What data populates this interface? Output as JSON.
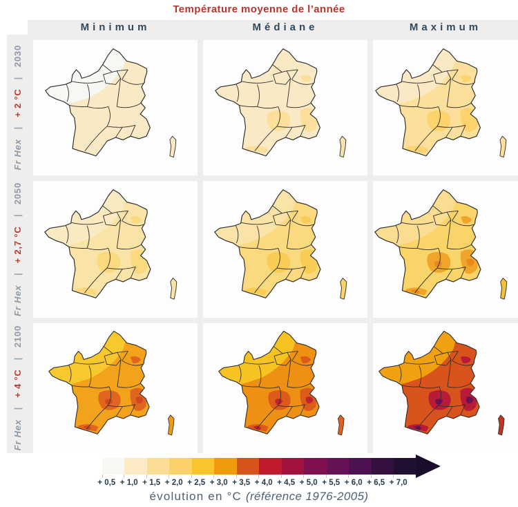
{
  "title": "Température moyenne de l’année",
  "columns": [
    "Minimum",
    "Médiane",
    "Maximum"
  ],
  "separator": "|",
  "rows": [
    {
      "scenario": "Fr Hex",
      "warming": "+ 2 °C",
      "year": "2030"
    },
    {
      "scenario": "Fr Hex",
      "warming": "+ 2,7 °C",
      "year": "2050"
    },
    {
      "scenario": "Fr Hex",
      "warming": "+ 4 °C",
      "year": "2100"
    }
  ],
  "cells": [
    {
      "row": "2030",
      "column": "Minimum",
      "colors": {
        "base": "#f9e9c5",
        "nw": "#f7f7f3",
        "se": null,
        "hot": null,
        "corsica": "#f9e9c5"
      }
    },
    {
      "row": "2030",
      "column": "Médiane",
      "colors": {
        "base": "#f9e9c5",
        "nw": null,
        "se": "#fbdf9b",
        "hot": null,
        "corsica": "#f7e3ae"
      }
    },
    {
      "row": "2030",
      "column": "Maximum",
      "colors": {
        "base": "#fbdf9b",
        "nw": "#f9e9c5",
        "se": "#fcd36c",
        "hot": null,
        "corsica": "#fbdf9b"
      }
    },
    {
      "row": "2050",
      "column": "Minimum",
      "colors": {
        "base": "#fae3a7",
        "nw": "#f9eac2",
        "se": "#fbd97e",
        "hot": null,
        "corsica": "#fae3a7"
      }
    },
    {
      "row": "2050",
      "column": "Médiane",
      "colors": {
        "base": "#fbd97e",
        "nw": "#fae3a7",
        "se": "#f9cd55",
        "hot": null,
        "corsica": "#f9d468"
      }
    },
    {
      "row": "2050",
      "column": "Maximum",
      "colors": {
        "base": "#f9d468",
        "nw": "#fbdd92",
        "se": "#f0a52a",
        "hot": "#e8891a",
        "corsica": "#f3c13a"
      }
    },
    {
      "row": "2100",
      "column": "Minimum",
      "colors": {
        "base": "#f2a31b",
        "nw": "#f7c92e",
        "se": "#e0661f",
        "hot": "#cf481e",
        "corsica": "#ef9a15"
      }
    },
    {
      "row": "2100",
      "column": "Médiane",
      "colors": {
        "base": "#ee9013",
        "nw": "#f6c322",
        "se": "#dc5a1a",
        "hot": "#bf2330",
        "corsica": "#e2611c"
      }
    },
    {
      "row": "2100",
      "column": "Maximum",
      "colors": {
        "base": "#d9531c",
        "nw": "#f0a112",
        "se": "#b81b38",
        "hot": "#6d1055",
        "corsica": "#c03424"
      }
    }
  ],
  "legend": {
    "stops": [
      {
        "label": "+ 0,5",
        "color": "#f7f7f3"
      },
      {
        "label": "+ 1,0",
        "color": "#fbeac4"
      },
      {
        "label": "+ 1,5",
        "color": "#fbdd96"
      },
      {
        "label": "+ 2,0",
        "color": "#fbd269"
      },
      {
        "label": "+ 2,5",
        "color": "#f8c52e"
      },
      {
        "label": "+ 3,0",
        "color": "#ef9b0b"
      },
      {
        "label": "+ 3,5",
        "color": "#d8531c"
      },
      {
        "label": "+ 4,0",
        "color": "#c11b2e"
      },
      {
        "label": "+ 4,5",
        "color": "#a2123f"
      },
      {
        "label": "+ 5,0",
        "color": "#7f1150"
      },
      {
        "label": "+ 5,5",
        "color": "#651256"
      },
      {
        "label": "+ 6,0",
        "color": "#4c1150"
      },
      {
        "label": "+ 6,5",
        "color": "#331040"
      },
      {
        "label": "+ 7,0",
        "color": "#211031"
      }
    ],
    "arrow_color": "#1a0d29",
    "caption": "évolution en °C ",
    "caption_ref": "(référence 1976-2005)"
  },
  "theme": {
    "accent_red": "#b5352c",
    "header_blue": "#2e4a60",
    "label_gray": "#8b99a8",
    "band_bg": "#efeeec",
    "tick_navy": "#253b4e",
    "caption_gray": "#4e6172",
    "map_border": "#2b2b2b"
  },
  "chart_data": {
    "type": "heatmap",
    "subtype": "choropleth-small-multiples-of-France",
    "title": "Température moyenne de l’année",
    "columns": [
      "Minimum",
      "Médiane",
      "Maximum"
    ],
    "rows": [
      "Fr Hex | + 2 °C | 2030",
      "Fr Hex | + 2,7 °C | 2050",
      "Fr Hex | + 4 °C | 2100"
    ],
    "scale_label": "évolution en °C (référence 1976-2005)",
    "scale_ticks_c": [
      0.5,
      1.0,
      1.5,
      2.0,
      2.5,
      3.0,
      3.5,
      4.0,
      4.5,
      5.0,
      5.5,
      6.0,
      6.5,
      7.0
    ],
    "approx_cell_ranges_c": [
      [
        "+0,5 à +1,0",
        "+1,0 à +1,5",
        "+1,0 à +2,0"
      ],
      [
        "+1,0 à +2,0",
        "+1,5 à +2,5",
        "+2,0 à +3,0"
      ],
      [
        "+2,5 à +4,0",
        "+2,5 à +4,5",
        "+3,0 à +6,0"
      ]
    ],
    "legend_position": "bottom"
  }
}
